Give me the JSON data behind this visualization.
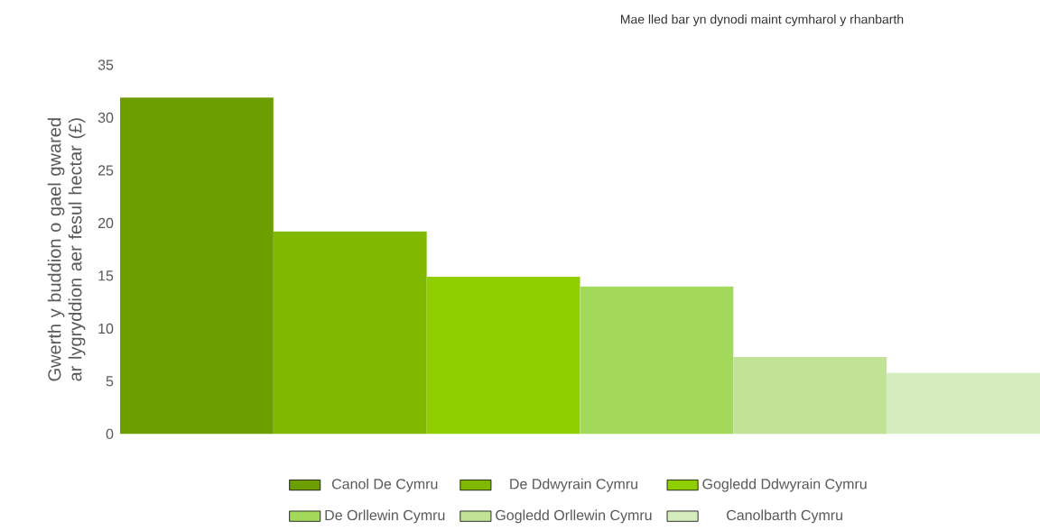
{
  "chart_data": {
    "type": "bar",
    "ylabel": "Gwerth y buddion o gael gwared ar lygryddion aer fesul hectar (£)",
    "annotations": [
      "Mae lled bar yn dynodi maint cymharol y rhanbarth"
    ],
    "categories": [
      null,
      null,
      null,
      null,
      null,
      null
    ],
    "stacked": true,
    "series": [
      {
        "name": "Canol De Cymru",
        "color": "#6d9e00",
        "values": [
          31.9,
          null,
          null,
          null,
          null,
          null
        ]
      },
      {
        "name": "De Ddwyrain Cymru",
        "color": "#80b800",
        "values": [
          null,
          19.2,
          null,
          null,
          null,
          null
        ]
      },
      {
        "name": "Gogledd Ddwyrain Cymru",
        "color": "#8fcf00",
        "values": [
          null,
          null,
          14.9,
          null,
          null,
          null
        ]
      },
      {
        "name": "De Orllewin Cymru",
        "color": "#a3d95a",
        "values": [
          null,
          null,
          null,
          14.0,
          null,
          null
        ]
      },
      {
        "name": "Gogledd Orllewin Cymru",
        "color": "#c0e396",
        "values": [
          null,
          null,
          null,
          null,
          7.3,
          null
        ]
      },
      {
        "name": "Canolbarth Cymru",
        "color": "#d5ecbf",
        "values": [
          null,
          null,
          null,
          null,
          null,
          5.8
        ]
      }
    ],
    "ylim": [
      0,
      35
    ],
    "yticks": [
      0,
      5,
      10,
      15,
      20,
      25,
      30,
      35
    ],
    "tick_labels": "y",
    "grid": false,
    "legend": "bottom"
  }
}
